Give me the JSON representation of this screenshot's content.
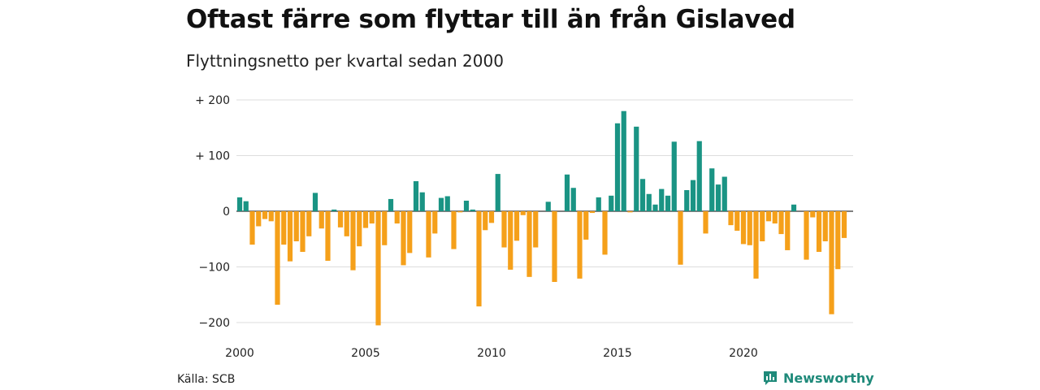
{
  "title": "Oftast färre som flyttar till än från Gislaved",
  "subtitle": "Flyttningsnetto per kvartal sedan 2000",
  "source": "Källa: SCB",
  "brand": "Newsworthy",
  "colors": {
    "positive": "#1a9484",
    "negative": "#f5a01a",
    "grid": "#dddddd"
  },
  "chart_data": {
    "type": "bar",
    "ylim": [
      -210,
      200
    ],
    "y_ticks": [
      {
        "value": 200,
        "label": "+ 200"
      },
      {
        "value": 100,
        "label": "+ 100"
      },
      {
        "value": 0,
        "label": "0"
      },
      {
        "value": -100,
        "label": "−100"
      },
      {
        "value": -200,
        "label": "−200"
      }
    ],
    "x_ticks": [
      "2000",
      "2005",
      "2010",
      "2015",
      "2020"
    ],
    "start_year": 2000,
    "values": [
      25,
      18,
      -60,
      -27,
      -14,
      -18,
      -168,
      -60,
      -90,
      -54,
      -73,
      -45,
      33,
      -31,
      -89,
      3,
      -29,
      -45,
      -106,
      -63,
      -30,
      -22,
      -205,
      -61,
      22,
      -22,
      -97,
      -75,
      54,
      34,
      -83,
      -40,
      24,
      27,
      -68,
      -2,
      19,
      3,
      -171,
      -34,
      -21,
      67,
      -65,
      -105,
      -53,
      -7,
      -118,
      -65,
      0,
      17,
      -127,
      0,
      66,
      42,
      -121,
      -51,
      -3,
      25,
      -78,
      28,
      158,
      180,
      -2,
      152,
      58,
      31,
      12,
      40,
      28,
      125,
      -96,
      38,
      56,
      126,
      -40,
      77,
      48,
      62,
      -25,
      -35,
      -59,
      -61,
      -121,
      -54,
      -18,
      -22,
      -41,
      -70,
      12,
      0,
      -87,
      -11,
      -73,
      -54,
      -185,
      -104,
      -48
    ]
  }
}
